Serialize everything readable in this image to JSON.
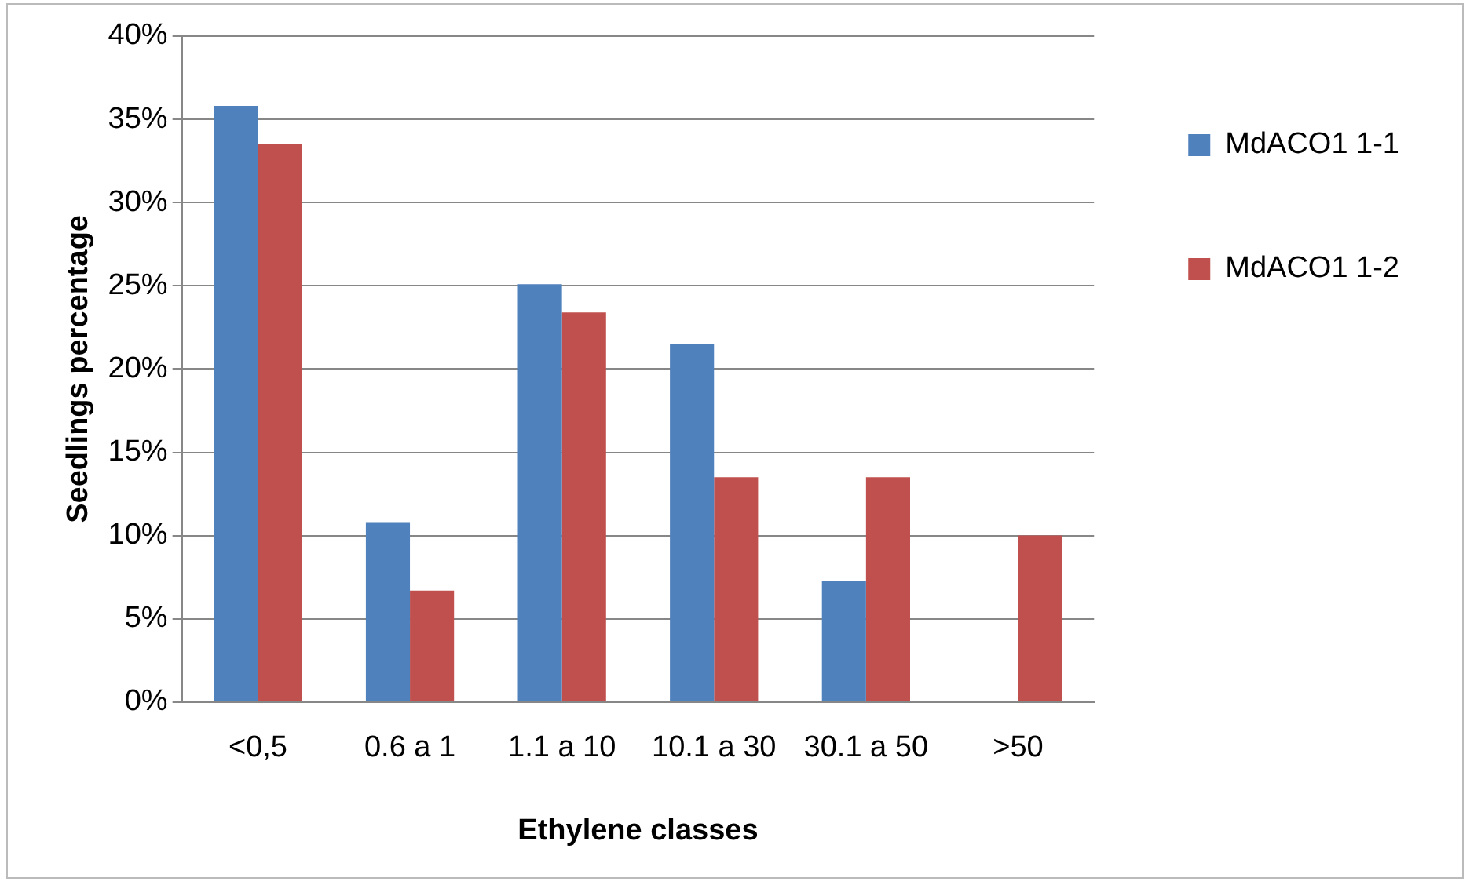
{
  "chart_data": {
    "type": "bar",
    "xlabel": "Ethylene classes",
    "ylabel": "Seedlings percentage",
    "categories": [
      "<0,5",
      "0.6 a 1",
      "1.1 a 10",
      "10.1 a 30",
      "30.1 a 50",
      ">50"
    ],
    "series": [
      {
        "name": "MdACO1 1-1",
        "color": "#4f81bd",
        "values": [
          35.8,
          10.8,
          25.1,
          21.5,
          7.3,
          0
        ]
      },
      {
        "name": "MdACO1 1-2",
        "color": "#c0504d",
        "values": [
          33.5,
          6.7,
          23.4,
          13.5,
          13.5,
          10.0
        ]
      }
    ],
    "ylim": [
      0,
      40
    ],
    "yticks": [
      {
        "value": 0,
        "label": "0%"
      },
      {
        "value": 5,
        "label": "5%"
      },
      {
        "value": 10,
        "label": "10%"
      },
      {
        "value": 15,
        "label": "15%"
      },
      {
        "value": 20,
        "label": "20%"
      },
      {
        "value": 25,
        "label": "25%"
      },
      {
        "value": 30,
        "label": "30%"
      },
      {
        "value": 35,
        "label": "35%"
      },
      {
        "value": 40,
        "label": "40%"
      }
    ],
    "grid": "y",
    "legend": "right"
  }
}
